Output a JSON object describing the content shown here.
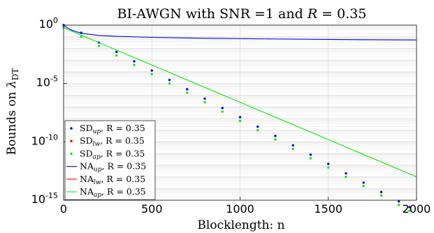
{
  "chart_data": {
    "type": "line",
    "title": "BI-AWGN with SNR =1 and R = 0.35",
    "xlabel": "Blocklength: n",
    "ylabel": "Bounds on λ_DT",
    "xlim": [
      0,
      2000
    ],
    "ylim_log10": [
      -15,
      0
    ],
    "yscale": "log",
    "grid": true,
    "legend_position": "bottom-left",
    "x_ticks": [
      0,
      500,
      1000,
      1500,
      2000
    ],
    "y_ticks": [
      {
        "base": "10",
        "exp": "0"
      },
      {
        "base": "10",
        "exp": "-5"
      },
      {
        "base": "10",
        "exp": "-10"
      },
      {
        "base": "10",
        "exp": "-15"
      }
    ],
    "x_tick_labels": [
      "0",
      "500",
      "1000",
      "1500",
      "2000"
    ],
    "series": [
      {
        "name": "SD_up, R = 0.35",
        "style": "dotted",
        "color": "#0000ff",
        "x": [
          0,
          100,
          200,
          300,
          400,
          500,
          600,
          700,
          800,
          900,
          1000,
          1100,
          1200,
          1300,
          1400,
          1500,
          1600,
          1700,
          1800,
          1900,
          1960
        ],
        "y": [
          "1e0",
          "2.2e-1",
          "3.2e-2",
          "5.0e-3",
          "7.9e-4",
          "1.3e-4",
          "2.0e-5",
          "3.2e-6",
          "5.0e-7",
          "7.9e-8",
          "1.3e-8",
          "2.0e-9",
          "3.2e-10",
          "5.0e-11",
          "7.9e-12",
          "1.3e-12",
          "2.0e-13",
          "3.2e-14",
          "5.0e-15",
          "7.9e-16",
          "2.6e-16"
        ]
      },
      {
        "name": "SD_lw, R = 0.35",
        "style": "dotted",
        "color": "#ff0000",
        "x": [],
        "y": []
      },
      {
        "name": "SD_ap, R = 0.35",
        "style": "dotted",
        "color": "#00ee00",
        "x": [
          0,
          100,
          200,
          300,
          400,
          500,
          600,
          700,
          800,
          900,
          1000,
          1100,
          1200,
          1300,
          1400,
          1500,
          1600,
          1700,
          1800,
          1900,
          1960
        ],
        "y": [
          "6.0e-1",
          "1.0e-1",
          "1.6e-2",
          "2.5e-3",
          "3.9e-4",
          "6.3e-5",
          "1.0e-5",
          "1.6e-6",
          "2.5e-7",
          "3.9e-8",
          "6.3e-9",
          "1.0e-9",
          "1.6e-10",
          "2.5e-11",
          "3.9e-12",
          "6.3e-13",
          "1.0e-13",
          "1.6e-14",
          "2.5e-15",
          "3.9e-16",
          "1.3e-16"
        ]
      },
      {
        "name": "NA_up, R = 0.35",
        "style": "solid",
        "color": "#0000ff",
        "x": [
          0,
          20,
          50,
          100,
          200,
          300,
          500,
          800,
          1200,
          1600,
          2000
        ],
        "y": [
          "1e0",
          "6e-1",
          "3.5e-1",
          "2.0e-1",
          "1.3e-1",
          "1.1e-1",
          "9.0e-2",
          "7.5e-2",
          "6.5e-2",
          "5.8e-2",
          "5.3e-2"
        ]
      },
      {
        "name": "NA_lw, R = 0.35",
        "style": "solid",
        "color": "#ff0000",
        "x": [],
        "y": []
      },
      {
        "name": "NA_ap, R = 0.35",
        "style": "solid",
        "color": "#00ee00",
        "x": [
          0,
          2000
        ],
        "y": [
          "6.0e-1",
          "1.0e-13"
        ]
      }
    ],
    "legend": [
      {
        "base": "SD",
        "sub": "up",
        "rest": ", R = 0.35",
        "marker": "dot",
        "color": "#0000ff"
      },
      {
        "base": "SD",
        "sub": "lw",
        "rest": ", R = 0.35",
        "marker": "dot",
        "color": "#ff0000"
      },
      {
        "base": "SD",
        "sub": "ap",
        "rest": ", R = 0.35",
        "marker": "dot",
        "color": "#00ee00"
      },
      {
        "base": "NA",
        "sub": "up",
        "rest": ", R = 0.35",
        "marker": "line",
        "color": "#0000ff"
      },
      {
        "base": "NA",
        "sub": "lw",
        "rest": ", R = 0.35",
        "marker": "line",
        "color": "#ff0000"
      },
      {
        "base": "NA",
        "sub": "ap",
        "rest": ", R = 0.35",
        "marker": "line",
        "color": "#00ee00"
      }
    ]
  }
}
